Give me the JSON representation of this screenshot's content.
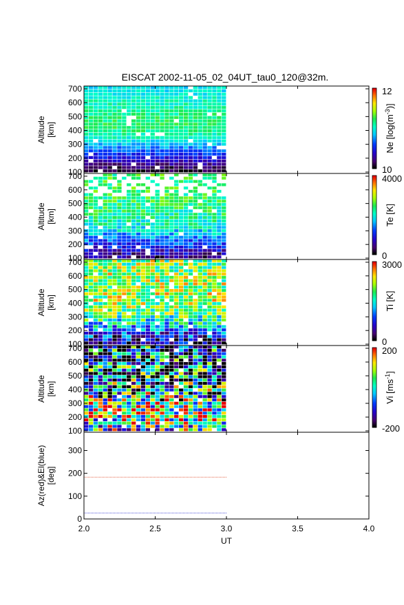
{
  "title": "EISCAT 2002-11-05_02_04UT_tau0_120@32m.",
  "chart_data": [
    {
      "type": "heatmap",
      "panel": "Ne",
      "ylabel": [
        "Altitude",
        "[km]"
      ],
      "ylim": [
        90,
        720
      ],
      "yticks": [
        100,
        200,
        300,
        400,
        500,
        600,
        700
      ],
      "xlim": [
        2.0,
        4.0
      ],
      "data_xrange": [
        2.0,
        3.0
      ],
      "colorbar": {
        "label_parts": [
          "Ne [log(m",
          "-3",
          ")]"
        ],
        "min": 10,
        "max": 12,
        "ticks": [
          "12",
          "10"
        ],
        "colormap": "rainbow"
      },
      "description_profile": "high density (~11.3-11.6) above 350 km, decreasing toward 10 below 150 km",
      "profile_alt": [
        100,
        150,
        200,
        250,
        300,
        350,
        400,
        450,
        500,
        600,
        700
      ],
      "profile_val": [
        0.02,
        0.1,
        0.22,
        0.32,
        0.42,
        0.52,
        0.58,
        0.6,
        0.58,
        0.52,
        0.46
      ]
    },
    {
      "type": "heatmap",
      "panel": "Te",
      "ylabel": [
        "Altitude",
        "[km]"
      ],
      "ylim": [
        90,
        720
      ],
      "yticks": [
        100,
        200,
        300,
        400,
        500,
        600,
        700
      ],
      "xlim": [
        2.0,
        4.0
      ],
      "data_xrange": [
        2.0,
        3.0
      ],
      "colorbar": {
        "label_parts": [
          "Te [K]"
        ],
        "min": 0,
        "max": 4000,
        "ticks": [
          "4000",
          "0"
        ],
        "colormap": "rainbow"
      },
      "profile_alt": [
        100,
        150,
        200,
        250,
        300,
        350,
        400,
        450,
        500,
        600,
        700
      ],
      "profile_val": [
        0.1,
        0.18,
        0.28,
        0.38,
        0.46,
        0.52,
        0.55,
        0.57,
        0.58,
        0.6,
        0.6
      ]
    },
    {
      "type": "heatmap",
      "panel": "Ti",
      "ylabel": [
        "Altitude",
        "[km]"
      ],
      "ylim": [
        90,
        720
      ],
      "yticks": [
        100,
        200,
        300,
        400,
        500,
        600,
        700
      ],
      "xlim": [
        2.0,
        4.0
      ],
      "data_xrange": [
        2.0,
        3.0
      ],
      "colorbar": {
        "label_parts": [
          "Ti [K]"
        ],
        "min": 0,
        "max": 3000,
        "ticks": [
          "3000",
          "0"
        ],
        "colormap": "rainbow"
      },
      "profile_alt": [
        100,
        150,
        200,
        250,
        300,
        350,
        400,
        450,
        500,
        600,
        700
      ],
      "profile_val": [
        0.12,
        0.22,
        0.35,
        0.48,
        0.58,
        0.64,
        0.68,
        0.7,
        0.7,
        0.68,
        0.66
      ]
    },
    {
      "type": "heatmap",
      "panel": "Vi",
      "ylabel": [
        "Altitude",
        "[km]"
      ],
      "ylim": [
        90,
        720
      ],
      "yticks": [
        100,
        200,
        300,
        400,
        500,
        600,
        700
      ],
      "xlim": [
        2.0,
        4.0
      ],
      "data_xrange": [
        2.0,
        3.0
      ],
      "colorbar": {
        "label_parts": [
          "Vi [ms",
          "-1",
          "]"
        ],
        "min": -200,
        "max": 200,
        "ticks": [
          "200",
          "-200"
        ],
        "colormap": "rainbow"
      },
      "profile_alt": [
        100,
        150,
        200,
        250,
        300,
        350,
        400,
        450,
        500,
        600,
        700
      ],
      "profile_val": [
        0.5,
        0.55,
        0.7,
        0.72,
        0.65,
        0.55,
        0.5,
        0.45,
        0.4,
        0.35,
        0.3
      ]
    },
    {
      "type": "line",
      "panel": "AzEl",
      "ylabel": [
        "Az(red)&El(blue)",
        "[deg]"
      ],
      "ylim": [
        0,
        380
      ],
      "yticks": [
        0,
        100,
        200,
        300
      ],
      "xlim": [
        2.0,
        4.0
      ],
      "xticks": [
        "2.0",
        "2.5",
        "3.0",
        "3.5",
        "4.0"
      ],
      "xlabel": "UT",
      "series": [
        {
          "color": "#e8735a",
          "x": [
            2.0,
            3.0
          ],
          "values": [
            183,
            183
          ]
        },
        {
          "color": "#6f73e0",
          "x": [
            2.0,
            3.0
          ],
          "values": [
            26,
            26
          ]
        }
      ]
    }
  ]
}
